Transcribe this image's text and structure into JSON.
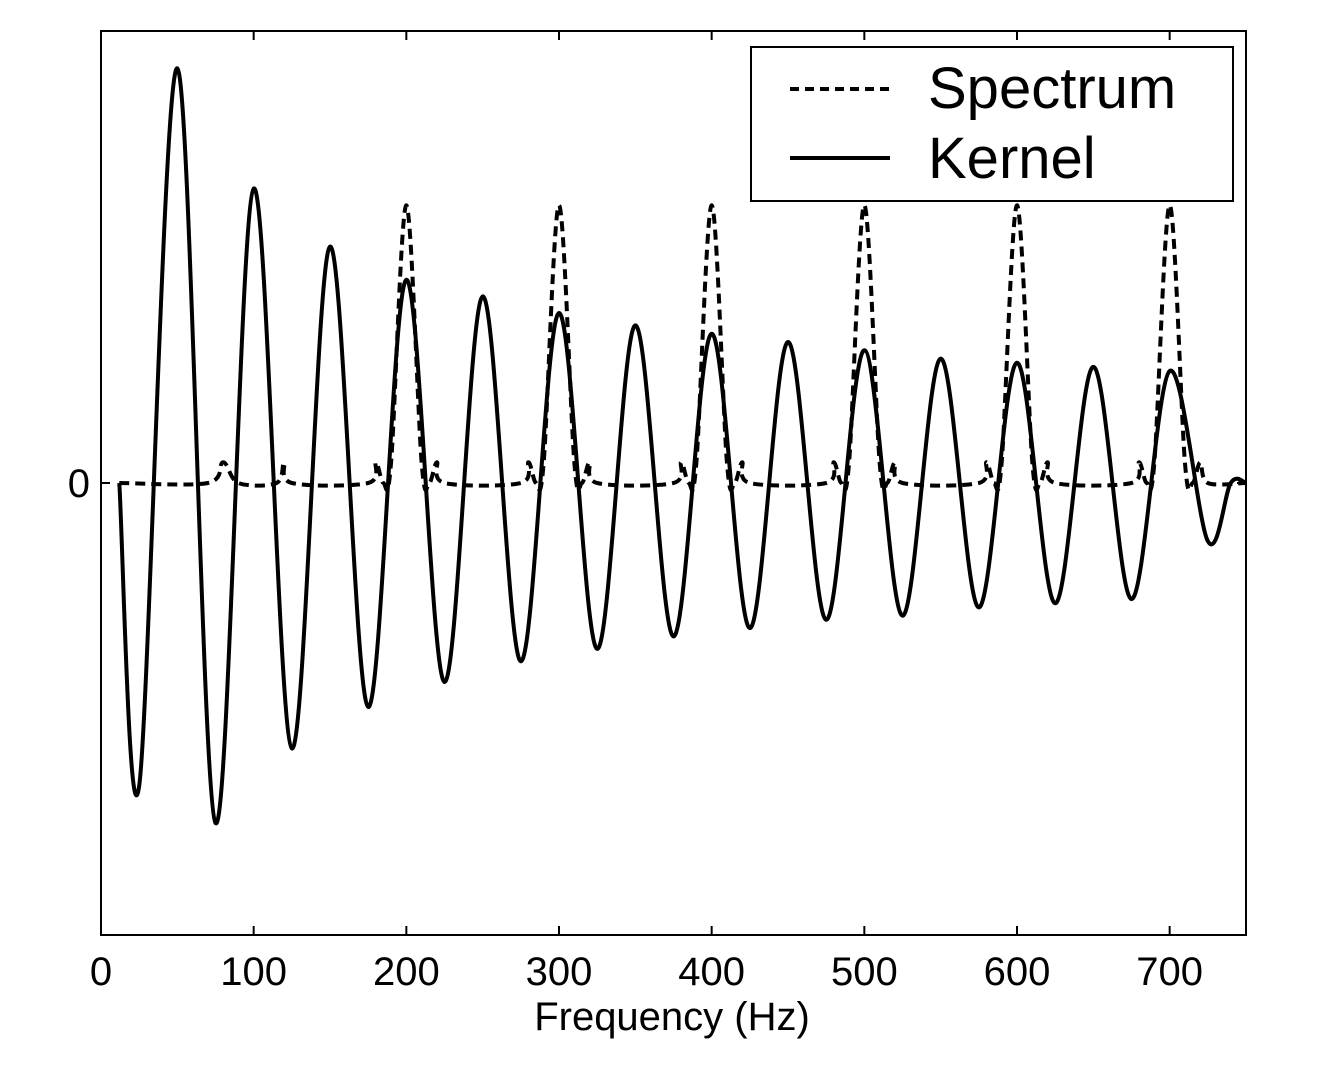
{
  "chart_data": {
    "type": "line",
    "title": "",
    "xlabel": "Frequency (Hz)",
    "ylabel": "",
    "xlim": [
      0,
      750
    ],
    "ylim": [
      -1.09,
      1.09
    ],
    "x_ticks": [
      0,
      100,
      200,
      300,
      400,
      500,
      600,
      700
    ],
    "x_tick_labels": [
      "0",
      "100",
      "200",
      "300",
      "400",
      "500",
      "600",
      "700"
    ],
    "y_ticks": [
      0
    ],
    "y_tick_labels": [
      "0"
    ],
    "grid": false,
    "legend_position": "top-right",
    "series": [
      {
        "name": "Spectrum",
        "style": "dashed",
        "color": "#000000",
        "x": [
          12,
          70,
          80,
          90,
          115,
          120,
          125,
          175,
          180,
          185,
          190,
          200,
          210,
          215,
          220,
          225,
          275,
          280,
          285,
          290,
          300,
          310,
          315,
          320,
          325,
          375,
          380,
          385,
          390,
          400,
          410,
          415,
          420,
          425,
          475,
          480,
          485,
          490,
          500,
          510,
          515,
          520,
          525,
          575,
          580,
          585,
          590,
          600,
          610,
          615,
          620,
          625,
          675,
          680,
          685,
          690,
          700,
          710,
          715,
          720,
          725,
          750
        ],
        "y": [
          0,
          0,
          0.05,
          0,
          0,
          0.05,
          0,
          0,
          0.05,
          0,
          0.05,
          0.67,
          0.05,
          0,
          0.05,
          0,
          0,
          0.05,
          0,
          0.05,
          0.67,
          0.05,
          0,
          0.05,
          0,
          0,
          0.05,
          0,
          0.05,
          0.67,
          0.05,
          0,
          0.05,
          0,
          0,
          0.05,
          0,
          0.05,
          0.67,
          0.05,
          0,
          0.05,
          0,
          0,
          0.05,
          0,
          0.05,
          0.67,
          0.05,
          0,
          0.05,
          0,
          0,
          0.05,
          0,
          0.05,
          0.67,
          0.05,
          0,
          0.05,
          0,
          0
        ]
      },
      {
        "name": "Kernel",
        "style": "solid",
        "color": "#000000",
        "x": [
          12,
          25,
          50,
          75,
          100,
          125,
          150,
          175,
          200,
          225,
          250,
          275,
          300,
          325,
          350,
          375,
          400,
          425,
          450,
          475,
          500,
          525,
          550,
          575,
          600,
          625,
          650,
          675,
          700,
          725,
          740,
          750
        ],
        "y": [
          0,
          -0.73,
          1.0,
          -0.82,
          0.71,
          -0.64,
          0.57,
          -0.54,
          0.49,
          -0.48,
          0.45,
          -0.43,
          0.41,
          -0.4,
          0.38,
          -0.37,
          0.36,
          -0.35,
          0.34,
          -0.33,
          0.32,
          -0.32,
          0.3,
          -0.3,
          0.29,
          -0.29,
          0.28,
          -0.28,
          0.27,
          -0.14,
          0,
          0
        ]
      }
    ]
  }
}
